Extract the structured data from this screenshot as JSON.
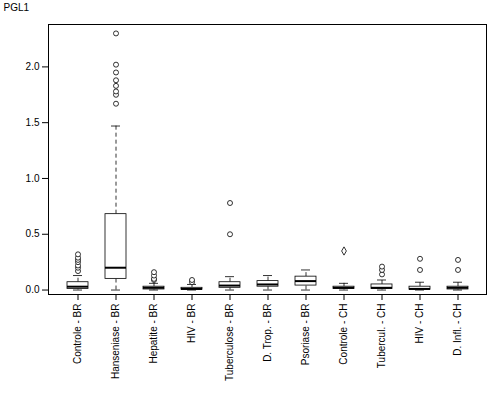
{
  "chart_data": {
    "type": "box",
    "ylabel": "PGL1",
    "categories": [
      "Controle - BR",
      "Hanseniase - BR",
      "Hepatite - BR",
      "HIV - BR",
      "Tuberculose - BR",
      "D. Trop. - BR",
      "Psoriase - BR",
      "Controle - CH",
      "Tubercul. - CH",
      "HIV - CH",
      "D. Infl. - CH"
    ],
    "boxes": [
      {
        "med": 0.03,
        "q1": 0.01,
        "q3": 0.07,
        "whislo": 0.0,
        "whishi": 0.13,
        "fliers": [
          0.17,
          0.2,
          0.22,
          0.25,
          0.27,
          0.29,
          0.32
        ],
        "marker": "circle"
      },
      {
        "med": 0.2,
        "q1": 0.1,
        "q3": 0.68,
        "whislo": 0.0,
        "whishi": 1.47,
        "fliers": [
          1.67,
          1.75,
          1.78,
          1.83,
          1.88,
          1.95,
          2.02,
          2.3
        ],
        "marker": "circle"
      },
      {
        "med": 0.02,
        "q1": 0.005,
        "q3": 0.03,
        "whislo": 0.0,
        "whishi": 0.06,
        "fliers": [
          0.09,
          0.1,
          0.13,
          0.16
        ],
        "marker": "circle"
      },
      {
        "med": 0.01,
        "q1": 0.003,
        "q3": 0.02,
        "whislo": 0.0,
        "whishi": 0.05,
        "fliers": [
          0.07,
          0.09
        ],
        "marker": "circle"
      },
      {
        "med": 0.04,
        "q1": 0.02,
        "q3": 0.07,
        "whislo": 0.0,
        "whishi": 0.12,
        "fliers": [
          0.5,
          0.78
        ],
        "marker": "circle"
      },
      {
        "med": 0.05,
        "q1": 0.03,
        "q3": 0.08,
        "whislo": 0.0,
        "whishi": 0.13,
        "fliers": [],
        "marker": "circle"
      },
      {
        "med": 0.08,
        "q1": 0.04,
        "q3": 0.12,
        "whislo": 0.0,
        "whishi": 0.18,
        "fliers": [],
        "marker": "circle"
      },
      {
        "med": 0.02,
        "q1": 0.01,
        "q3": 0.03,
        "whislo": 0.0,
        "whishi": 0.06,
        "fliers": [
          0.35
        ],
        "marker": "diamond"
      },
      {
        "med": 0.02,
        "q1": 0.01,
        "q3": 0.05,
        "whislo": 0.0,
        "whishi": 0.09,
        "fliers": [
          0.14,
          0.18,
          0.21
        ],
        "marker": "circle"
      },
      {
        "med": 0.01,
        "q1": 0.003,
        "q3": 0.03,
        "whislo": 0.0,
        "whishi": 0.07,
        "fliers": [
          0.18,
          0.28
        ],
        "marker": "circle"
      },
      {
        "med": 0.02,
        "q1": 0.005,
        "q3": 0.03,
        "whislo": 0.0,
        "whishi": 0.07,
        "fliers": [
          0.18,
          0.27
        ],
        "marker": "circle"
      }
    ],
    "ylim": [
      -0.04,
      2.38
    ],
    "yticks": [
      {
        "value": 0.0,
        "label": "0.0"
      },
      0.5,
      {
        "value": 1.0,
        "label": "1.0"
      },
      1.5,
      {
        "value": 2.0,
        "label": "2.0"
      }
    ],
    "grid": false
  }
}
